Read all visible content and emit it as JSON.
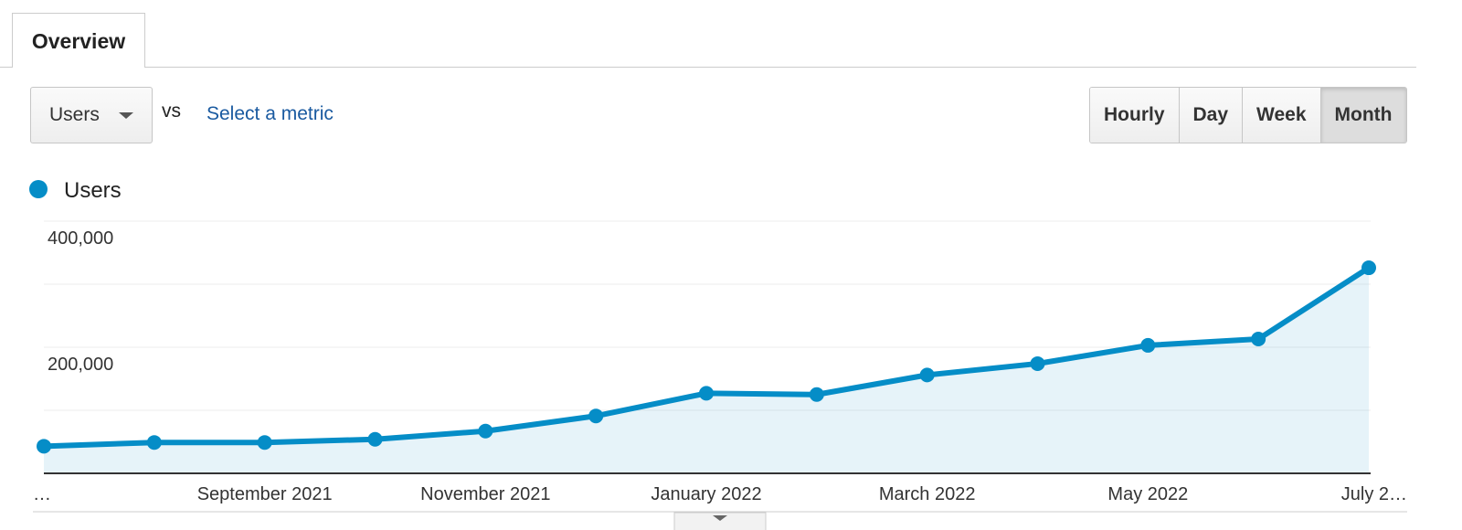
{
  "tabs": [
    "Overview"
  ],
  "metric_selector": {
    "selected": "Users",
    "vs": "vs",
    "link": "Select a metric"
  },
  "granularity": {
    "options": [
      "Hourly",
      "Day",
      "Week",
      "Month"
    ],
    "selected": "Month"
  },
  "chart_data": {
    "type": "line",
    "categories": [
      "…",
      null,
      "September 2021",
      null,
      "November 2021",
      null,
      "January 2022",
      null,
      "March 2022",
      null,
      "May 2022",
      null,
      "July 2…"
    ],
    "series": [
      {
        "name": "Users",
        "color": "#058dc7",
        "values": [
          43000,
          49000,
          49000,
          54000,
          67000,
          91000,
          127000,
          125000,
          156000,
          174000,
          203000,
          213000,
          326000
        ]
      }
    ],
    "ylim": [
      0,
      400000
    ],
    "yticks": [
      {
        "value": 200000,
        "label": "200,000"
      },
      {
        "value": 400000,
        "label": "400,000"
      }
    ],
    "minor_yticks": [
      100000,
      300000
    ],
    "grid": true,
    "area_fill": true
  }
}
